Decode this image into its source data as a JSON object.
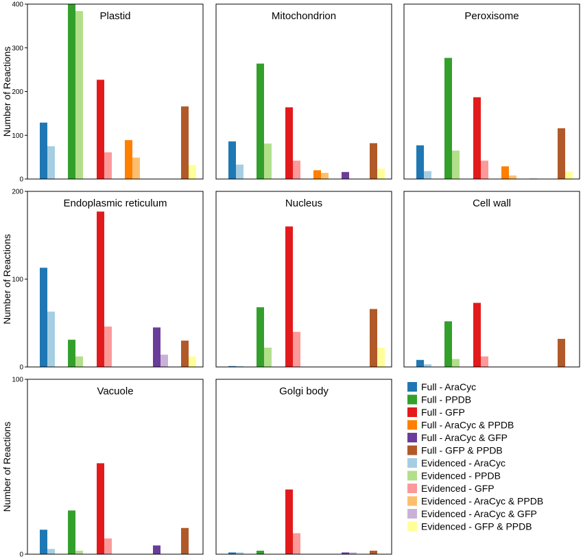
{
  "chart_data": {
    "type": "bar",
    "ylabel": "Number of Reactions",
    "series": [
      {
        "name": "Full - AraCyc",
        "color": "#1f78b4"
      },
      {
        "name": "Full - PPDB",
        "color": "#33a02c"
      },
      {
        "name": "Full - GFP",
        "color": "#e31a1c"
      },
      {
        "name": "Full - AraCyc & PPDB",
        "color": "#ff7f00"
      },
      {
        "name": "Full - AraCyc & GFP",
        "color": "#6a3d9a"
      },
      {
        "name": "Full - GFP & PPDB",
        "color": "#b15928"
      },
      {
        "name": "Evidenced - AraCyc",
        "color": "#a6cee3"
      },
      {
        "name": "Evidenced - PPDB",
        "color": "#b2df8a"
      },
      {
        "name": "Evidenced - GFP",
        "color": "#fb9a99"
      },
      {
        "name": "Evidenced - AraCyc & PPDB",
        "color": "#fdbf6f"
      },
      {
        "name": "Evidenced - AraCyc & GFP",
        "color": "#cab2d6"
      },
      {
        "name": "Evidenced - GFP & PPDB",
        "color": "#ffff99"
      }
    ],
    "groups": [
      "AraCyc",
      "PPDB",
      "GFP",
      "AraCyc & PPDB",
      "AraCyc & GFP",
      "GFP & PPDB"
    ],
    "rows": [
      {
        "ylim": [
          0,
          400
        ],
        "yticks": [
          "0",
          "100",
          "200",
          "300",
          "400"
        ],
        "tick_values": [
          0,
          100,
          200,
          300,
          400
        ]
      },
      {
        "ylim": [
          0,
          200
        ],
        "yticks": [
          "0",
          "100",
          "200"
        ],
        "tick_values": [
          0,
          100,
          200
        ]
      },
      {
        "ylim": [
          0,
          100
        ],
        "yticks": [
          "0",
          "100"
        ],
        "tick_values": [
          0,
          100
        ]
      }
    ],
    "panels": [
      {
        "title": "Plastid",
        "row": 0,
        "col": 0,
        "full": [
          129,
          400,
          227,
          89,
          0,
          166
        ],
        "evidenced": [
          75,
          384,
          61,
          49,
          0,
          32
        ]
      },
      {
        "title": "Mitochondrion",
        "row": 0,
        "col": 1,
        "full": [
          86,
          264,
          164,
          20,
          16,
          82
        ],
        "evidenced": [
          33,
          81,
          42,
          14,
          0,
          24
        ]
      },
      {
        "title": "Peroxisome",
        "row": 0,
        "col": 2,
        "full": [
          77,
          277,
          187,
          29,
          1,
          116
        ],
        "evidenced": [
          18,
          65,
          42,
          8,
          0,
          17
        ]
      },
      {
        "title": "Endoplasmic reticulum",
        "row": 1,
        "col": 0,
        "full": [
          113,
          31,
          177,
          0,
          45,
          30
        ],
        "evidenced": [
          63,
          12,
          46,
          0,
          14,
          12
        ]
      },
      {
        "title": "Nucleus",
        "row": 1,
        "col": 1,
        "full": [
          1,
          68,
          160,
          0,
          0,
          66
        ],
        "evidenced": [
          1,
          22,
          40,
          0,
          0,
          22
        ]
      },
      {
        "title": "Cell wall",
        "row": 1,
        "col": 2,
        "full": [
          8,
          52,
          73,
          0,
          0,
          32
        ],
        "evidenced": [
          3,
          9,
          12,
          0,
          0,
          0
        ]
      },
      {
        "title": "Vacuole",
        "row": 2,
        "col": 0,
        "full": [
          14,
          25,
          52,
          0,
          5,
          15
        ],
        "evidenced": [
          3,
          2,
          9,
          0,
          0,
          0
        ]
      },
      {
        "title": "Golgi body",
        "row": 2,
        "col": 1,
        "full": [
          1,
          2,
          37,
          0,
          1,
          2
        ],
        "evidenced": [
          1,
          0,
          12,
          0,
          1,
          0
        ]
      }
    ]
  }
}
